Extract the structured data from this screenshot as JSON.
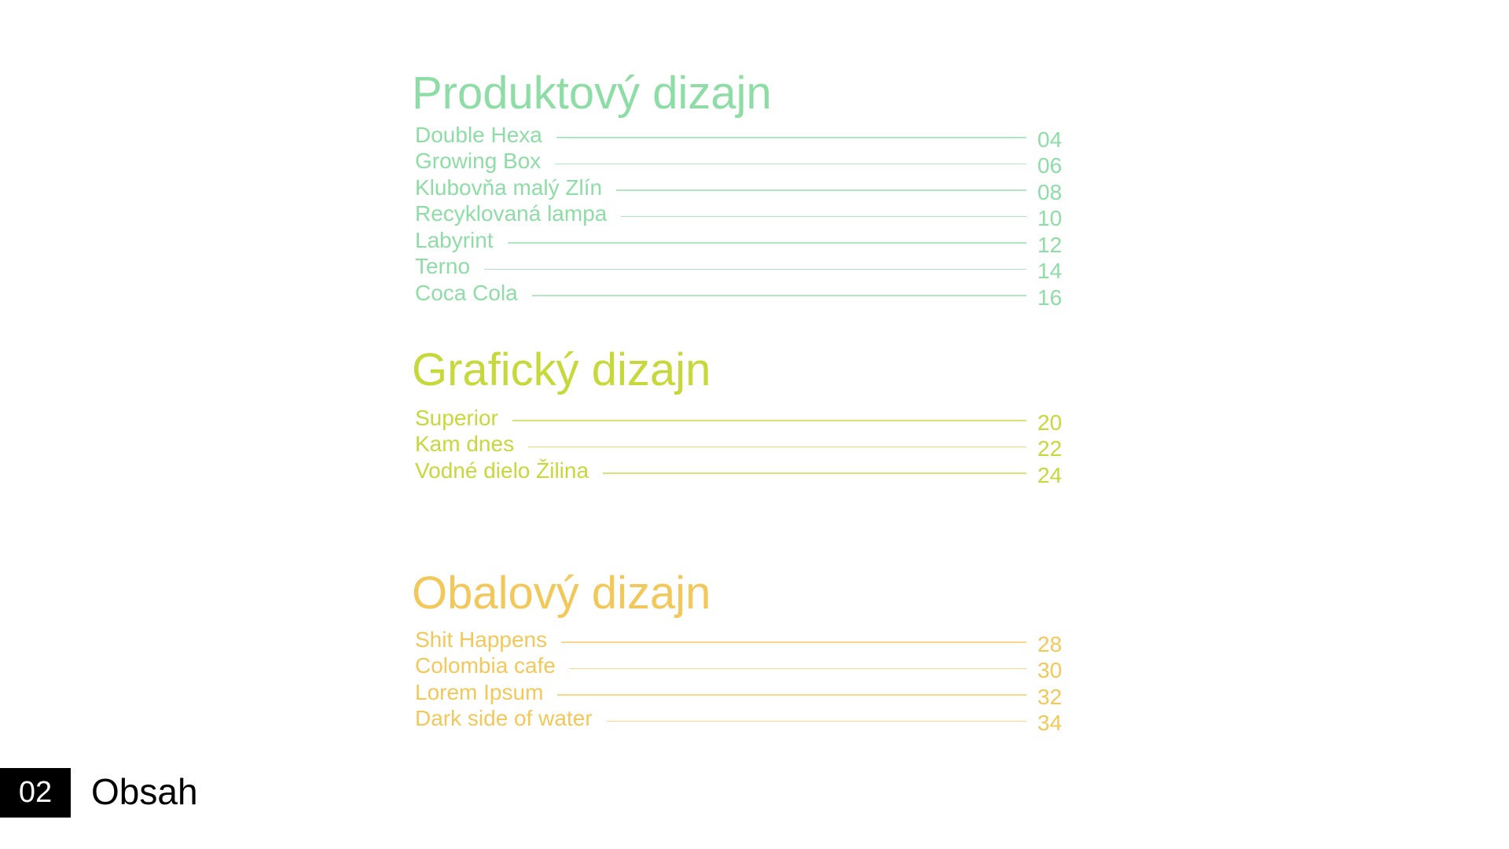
{
  "sections": [
    {
      "title": "Produktový dizajn",
      "color": "#8edca6",
      "items": [
        {
          "label": "Double Hexa",
          "page": "04"
        },
        {
          "label": "Growing Box",
          "page": "06"
        },
        {
          "label": "Klubovňa malý Zlín",
          "page": "08"
        },
        {
          "label": "Recyklovaná lampa",
          "page": "10"
        },
        {
          "label": "Labyrint",
          "page": "12"
        },
        {
          "label": "Terno",
          "page": "14"
        },
        {
          "label": "Coca Cola",
          "page": "16"
        }
      ]
    },
    {
      "title": "Grafický dizajn",
      "color": "#c6d83a",
      "items": [
        {
          "label": "Superior",
          "page": "20"
        },
        {
          "label": "Kam dnes",
          "page": "22"
        },
        {
          "label": "Vodné dielo Žilina",
          "page": "24"
        }
      ]
    },
    {
      "title": "Obalový dizajn",
      "color": "#f2c85a",
      "items": [
        {
          "label": "Shit Happens",
          "page": "28"
        },
        {
          "label": "Colombia cafe",
          "page": "30"
        },
        {
          "label": "Lorem Ipsum",
          "page": "32"
        },
        {
          "label": "Dark side of water",
          "page": "34"
        }
      ]
    }
  ],
  "footer": {
    "page_number": "02",
    "title": "Obsah"
  }
}
